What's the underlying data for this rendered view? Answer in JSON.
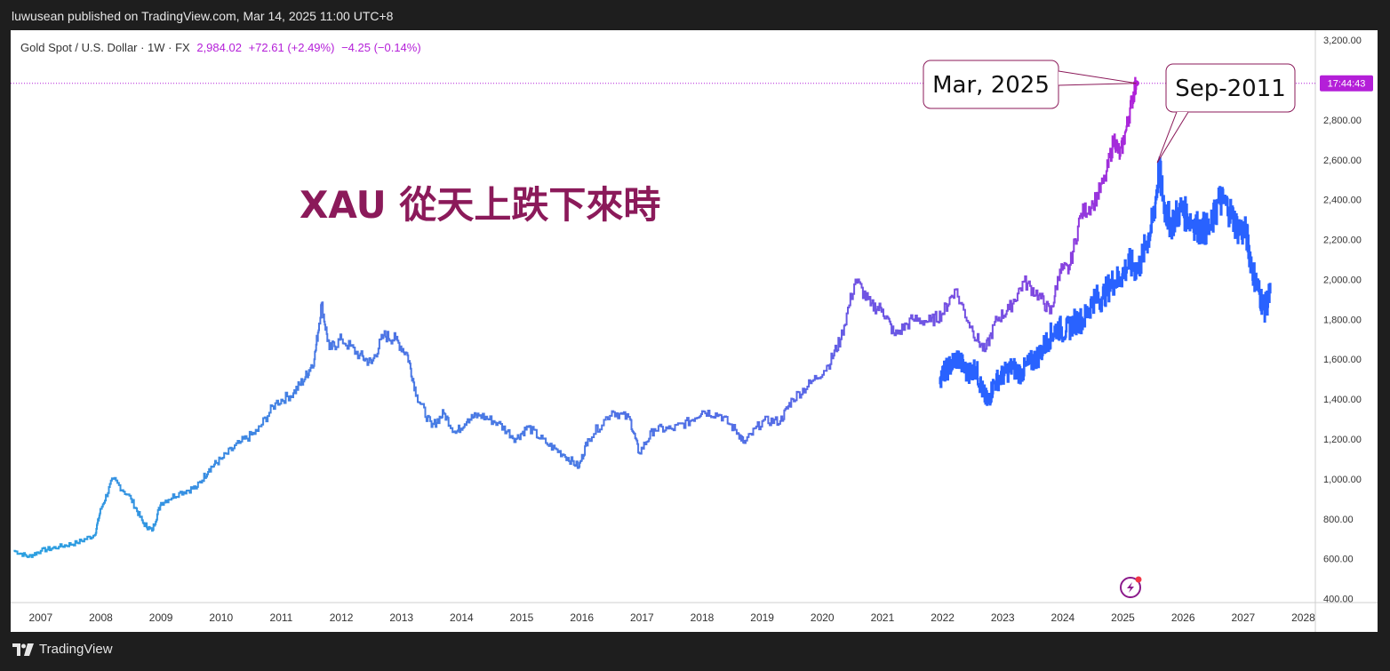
{
  "header": {
    "publisher_line": "luwusean published on TradingView.com, Mar 14, 2025 11:00 UTC+8"
  },
  "footer": {
    "brand": "TradingView",
    "logo_icon": "tradingview-logo-icon"
  },
  "legend": {
    "symbol": "Gold Spot / U.S. Dollar · 1W · FX",
    "price": "2,984.02",
    "change": "+72.61 (+2.49%)",
    "change2": "−4.25 (−0.14%)"
  },
  "annotation_title": "XAU 從天上跌下來時",
  "callouts": [
    {
      "text": "Mar, 2025"
    },
    {
      "text": "Sep-2011"
    }
  ],
  "price_tag": "17:44:43",
  "colors": {
    "title": "#8b1a5a",
    "primary_start": "#2aa0e0",
    "primary_end": "#b41fd8",
    "overlay": "#2962ff",
    "price_line": "#b41fd8"
  },
  "chart_data": {
    "type": "line",
    "title": "",
    "xlabel": "",
    "ylabel": "",
    "ylim": [
      380,
      3250
    ],
    "xlim": [
      2006.5,
      2028.2
    ],
    "y_ticks": [
      "400.00",
      "600.00",
      "800.00",
      "1,000.00",
      "1,200.00",
      "1,400.00",
      "1,600.00",
      "1,800.00",
      "2,000.00",
      "2,200.00",
      "2,400.00",
      "2,600.00",
      "2,800.00",
      "3,000.00",
      "3,200.00"
    ],
    "x_ticks": [
      "2007",
      "2008",
      "2009",
      "2010",
      "2011",
      "2012",
      "2013",
      "2014",
      "2015",
      "2016",
      "2017",
      "2018",
      "2019",
      "2020",
      "2021",
      "2022",
      "2023",
      "2024",
      "2025",
      "2026",
      "2027",
      "2028"
    ],
    "series": [
      {
        "points": [
          [
            2006.55,
            640
          ],
          [
            2006.8,
            610
          ],
          [
            2007.0,
            640
          ],
          [
            2007.3,
            660
          ],
          [
            2007.6,
            680
          ],
          [
            2007.9,
            720
          ],
          [
            2008.0,
            850
          ],
          [
            2008.2,
            1000
          ],
          [
            2008.5,
            900
          ],
          [
            2008.7,
            780
          ],
          [
            2008.85,
            740
          ],
          [
            2009.0,
            880
          ],
          [
            2009.3,
            930
          ],
          [
            2009.6,
            960
          ],
          [
            2009.8,
            1050
          ],
          [
            2010.0,
            1100
          ],
          [
            2010.3,
            1180
          ],
          [
            2010.6,
            1240
          ],
          [
            2010.9,
            1380
          ],
          [
            2011.2,
            1430
          ],
          [
            2011.4,
            1510
          ],
          [
            2011.55,
            1600
          ],
          [
            2011.67,
            1880
          ],
          [
            2011.8,
            1650
          ],
          [
            2012.0,
            1700
          ],
          [
            2012.3,
            1620
          ],
          [
            2012.5,
            1580
          ],
          [
            2012.7,
            1720
          ],
          [
            2012.9,
            1700
          ],
          [
            2013.1,
            1620
          ],
          [
            2013.25,
            1420
          ],
          [
            2013.5,
            1260
          ],
          [
            2013.7,
            1330
          ],
          [
            2013.9,
            1230
          ],
          [
            2014.1,
            1300
          ],
          [
            2014.3,
            1320
          ],
          [
            2014.6,
            1280
          ],
          [
            2014.9,
            1200
          ],
          [
            2015.1,
            1260
          ],
          [
            2015.4,
            1180
          ],
          [
            2015.7,
            1120
          ],
          [
            2015.95,
            1060
          ],
          [
            2016.1,
            1200
          ],
          [
            2016.5,
            1340
          ],
          [
            2016.8,
            1300
          ],
          [
            2016.95,
            1130
          ],
          [
            2017.2,
            1250
          ],
          [
            2017.5,
            1250
          ],
          [
            2017.8,
            1290
          ],
          [
            2018.0,
            1340
          ],
          [
            2018.3,
            1320
          ],
          [
            2018.6,
            1230
          ],
          [
            2018.7,
            1180
          ],
          [
            2019.0,
            1290
          ],
          [
            2019.3,
            1290
          ],
          [
            2019.5,
            1400
          ],
          [
            2019.8,
            1480
          ],
          [
            2020.1,
            1570
          ],
          [
            2020.3,
            1700
          ],
          [
            2020.55,
            2000
          ],
          [
            2020.8,
            1870
          ],
          [
            2021.0,
            1850
          ],
          [
            2021.2,
            1720
          ],
          [
            2021.5,
            1800
          ],
          [
            2021.8,
            1790
          ],
          [
            2022.0,
            1830
          ],
          [
            2022.2,
            1950
          ],
          [
            2022.5,
            1740
          ],
          [
            2022.7,
            1640
          ],
          [
            2022.9,
            1800
          ],
          [
            2023.1,
            1850
          ],
          [
            2023.35,
            1990
          ],
          [
            2023.6,
            1920
          ],
          [
            2023.8,
            1830
          ],
          [
            2023.95,
            2050
          ],
          [
            2024.1,
            2050
          ],
          [
            2024.3,
            2330
          ],
          [
            2024.5,
            2380
          ],
          [
            2024.7,
            2500
          ],
          [
            2024.85,
            2710
          ],
          [
            2024.95,
            2620
          ],
          [
            2025.05,
            2750
          ],
          [
            2025.15,
            2900
          ],
          [
            2025.22,
            2984
          ]
        ]
      },
      {
        "points": [
          [
            2021.95,
            1510
          ],
          [
            2022.1,
            1560
          ],
          [
            2022.25,
            1610
          ],
          [
            2022.4,
            1530
          ],
          [
            2022.55,
            1560
          ],
          [
            2022.65,
            1450
          ],
          [
            2022.75,
            1380
          ],
          [
            2022.85,
            1480
          ],
          [
            2023.0,
            1520
          ],
          [
            2023.15,
            1560
          ],
          [
            2023.3,
            1530
          ],
          [
            2023.45,
            1580
          ],
          [
            2023.6,
            1620
          ],
          [
            2023.75,
            1700
          ],
          [
            2023.9,
            1760
          ],
          [
            2024.05,
            1740
          ],
          [
            2024.2,
            1790
          ],
          [
            2024.35,
            1800
          ],
          [
            2024.5,
            1900
          ],
          [
            2024.65,
            1910
          ],
          [
            2024.8,
            1980
          ],
          [
            2024.95,
            2010
          ],
          [
            2025.1,
            2080
          ],
          [
            2025.25,
            2050
          ],
          [
            2025.4,
            2190
          ],
          [
            2025.5,
            2300
          ],
          [
            2025.6,
            2550
          ],
          [
            2025.7,
            2350
          ],
          [
            2025.8,
            2280
          ],
          [
            2025.95,
            2350
          ],
          [
            2026.1,
            2310
          ],
          [
            2026.25,
            2260
          ],
          [
            2026.45,
            2250
          ],
          [
            2026.6,
            2400
          ],
          [
            2026.75,
            2360
          ],
          [
            2026.9,
            2260
          ],
          [
            2027.05,
            2230
          ],
          [
            2027.15,
            2050
          ],
          [
            2027.25,
            1950
          ],
          [
            2027.35,
            1850
          ],
          [
            2027.45,
            1930
          ]
        ]
      }
    ]
  }
}
